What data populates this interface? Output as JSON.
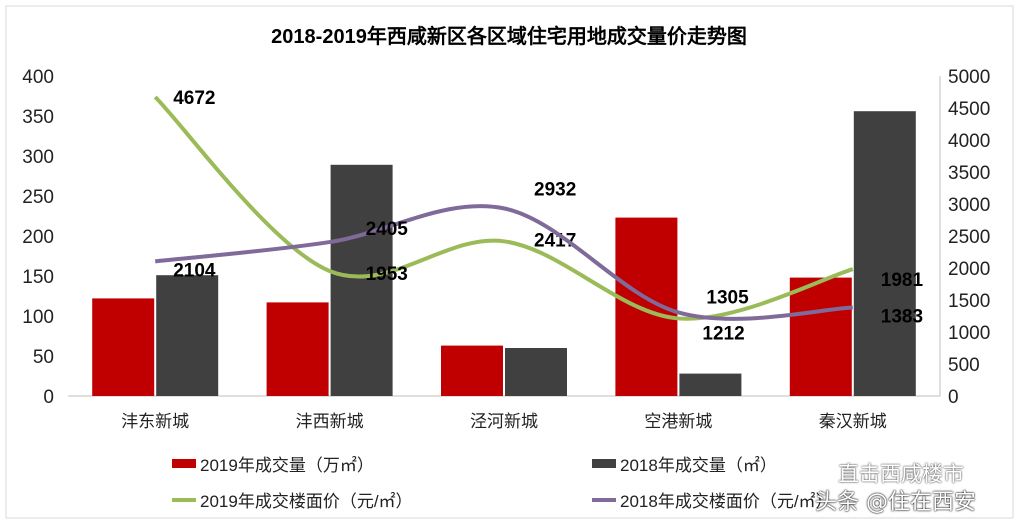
{
  "chart_data": {
    "type": "bar+line",
    "title": "2018-2019年西咸新区各区域住宅用地成交量价走势图",
    "categories": [
      "沣东新城",
      "沣西新城",
      "泾河新城",
      "空港新城",
      "秦汉新城"
    ],
    "left_axis": {
      "ylim": [
        0,
        400
      ],
      "ticks": [
        0,
        50,
        100,
        150,
        200,
        250,
        300,
        350,
        400
      ]
    },
    "right_axis": {
      "ylim": [
        0,
        5000
      ],
      "ticks": [
        0,
        500,
        1000,
        1500,
        2000,
        2500,
        3000,
        3500,
        4000,
        4500,
        5000
      ]
    },
    "grid": false,
    "legend_placement": "bottom",
    "bar_series": [
      {
        "name": "2019年成交量（万㎡）",
        "color": "#c00000",
        "axis": "left",
        "values": [
          122,
          117,
          63,
          223,
          148
        ]
      },
      {
        "name": "2018年成交量（㎡）",
        "color": "#404040",
        "axis": "left",
        "values": [
          151,
          289,
          60,
          28,
          356
        ]
      }
    ],
    "line_series": [
      {
        "name": "2019年成交楼面价（元/㎡）",
        "color": "#9bbb59",
        "axis": "right",
        "values": [
          4672,
          1953,
          2417,
          1212,
          1981
        ],
        "labels": [
          "4672",
          "1953",
          "2417",
          "1212",
          "1981"
        ]
      },
      {
        "name": "2018年成交楼面价（元/㎡）",
        "color": "#7f6a9a",
        "axis": "right",
        "values": [
          2104,
          2405,
          2932,
          1305,
          1383
        ],
        "labels": [
          "2104",
          "2405",
          "2932",
          "1305",
          "1383"
        ]
      }
    ]
  },
  "watermarks": {
    "top": "直击西咸楼市",
    "bottom": "头条 @住在西安"
  }
}
